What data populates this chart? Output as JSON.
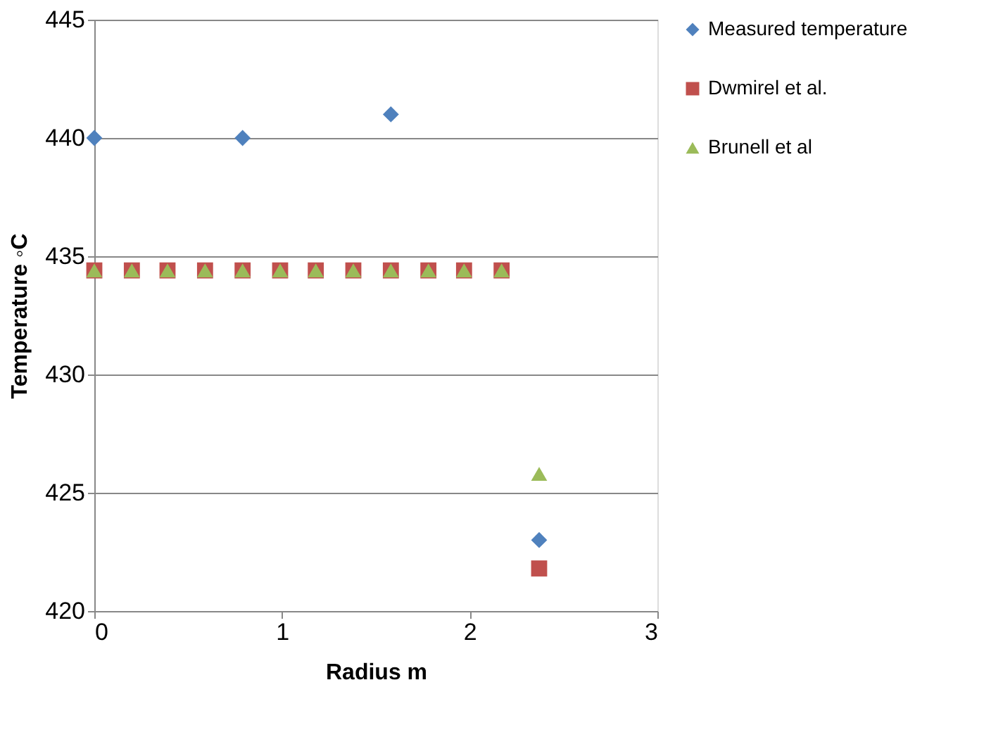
{
  "chart_data": {
    "type": "scatter",
    "xlabel": "Radius m",
    "ylabel": "Temperature ◦C",
    "xlim": [
      0,
      3
    ],
    "xticks": [
      0,
      1,
      2,
      3
    ],
    "ylim": [
      420,
      445
    ],
    "yticks": [
      420,
      425,
      430,
      435,
      440,
      445
    ],
    "grid": "y",
    "legend": "right",
    "series": [
      {
        "name": "Measured temperature",
        "color": "#4f81bd",
        "marker": "diamond",
        "x": [
          0,
          0.79,
          1.58,
          2.37
        ],
        "values": [
          440,
          440,
          441,
          423
        ]
      },
      {
        "name": "Dwmirel et al.",
        "color": "#c0504d",
        "marker": "square",
        "x": [
          0,
          0.2,
          0.39,
          0.59,
          0.79,
          0.99,
          1.18,
          1.38,
          1.58,
          1.78,
          1.97,
          2.17,
          2.37
        ],
        "values": [
          434.4,
          434.4,
          434.4,
          434.4,
          434.4,
          434.4,
          434.4,
          434.4,
          434.4,
          434.4,
          434.4,
          434.4,
          421.8
        ]
      },
      {
        "name": "Brunell et al",
        "color": "#9bbb59",
        "marker": "triangle",
        "x": [
          0,
          0.2,
          0.39,
          0.59,
          0.79,
          0.99,
          1.18,
          1.38,
          1.58,
          1.78,
          1.97,
          2.17,
          2.37
        ],
        "values": [
          434.4,
          434.4,
          434.4,
          434.4,
          434.4,
          434.4,
          434.4,
          434.4,
          434.4,
          434.4,
          434.4,
          434.4,
          425.8
        ]
      }
    ]
  }
}
